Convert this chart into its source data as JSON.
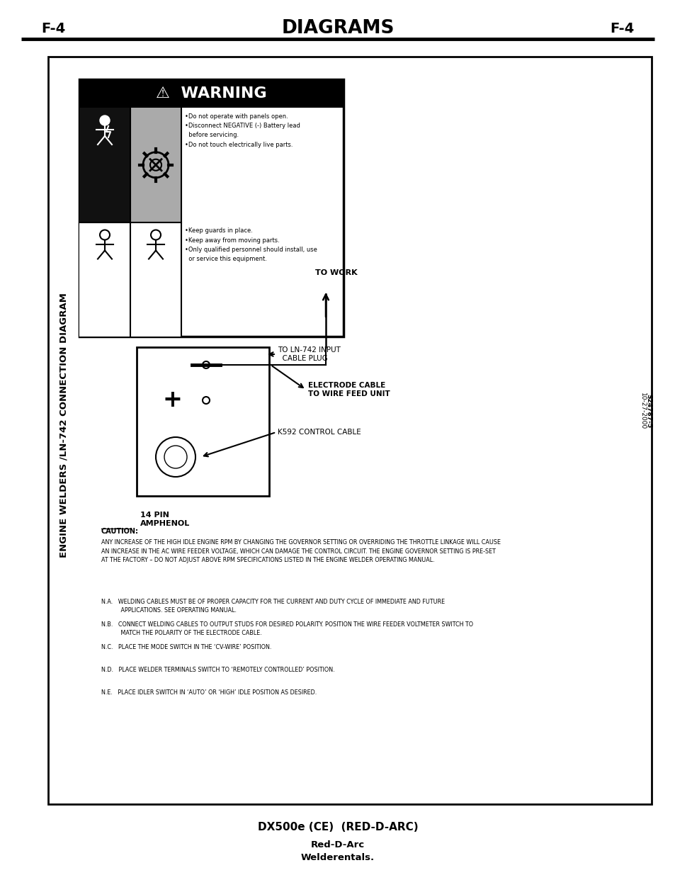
{
  "page_label_left": "F-4",
  "page_label_right": "F-4",
  "header_title": "DIAGRAMS",
  "footer_line1": "DX500e (CE)  (RED-D-ARC)",
  "footer_line2": "Red-D-Arc",
  "footer_line3": "Welderentals.",
  "sidebar_title": "ENGINE WELDERS /LN-742 CONNECTION DIAGRAM",
  "date_code": "10-27-2000",
  "part_number": "S24787-5",
  "warning_title": "⚠  WARNING",
  "left_bullets": "•Do not operate with panels open.\n•Disconnect NEGATIVE (-) Battery lead\n  before servicing.\n•Do not touch electrically live parts.",
  "right_bullets": "•Keep guards in place.\n•Keep away from moving parts.\n•Only qualified personnel should install, use\n  or service this equipment.",
  "caution_header": "CAUTION:",
  "caution_body": "ANY INCREASE OF THE HIGH IDLE ENGINE RPM BY CHANGING THE GOVERNOR SETTING OR OVERRIDING THE THROTTLE LINKAGE WILL CAUSE\nAN INCREASE IN THE AC WIRE FEEDER VOLTAGE, WHICH CAN DAMAGE THE CONTROL CIRCUIT. THE ENGINE GOVERNOR SETTING IS PRE-SET\nAT THE FACTORY – DO NOT ADJUST ABOVE RPM SPECIFICATIONS LISTED IN THE ENGINE WELDER OPERATING MANUAL.",
  "note_na": "N.A.   WELDING CABLES MUST BE OF PROPER CAPACITY FOR THE CURRENT AND DUTY CYCLE OF IMMEDIATE AND FUTURE\n           APPLICATIONS. SEE OPERATING MANUAL.",
  "note_nb": "N.B.   CONNECT WELDING CABLES TO OUTPUT STUDS FOR DESIRED POLARITY. POSITION THE WIRE FEEDER VOLTMETER SWITCH TO\n           MATCH THE POLARITY OF THE ELECTRODE CABLE.",
  "note_nc": "N.C.   PLACE THE MODE SWITCH IN THE ‘CV-WIRE’ POSITION.",
  "note_nd": "N.D.   PLACE WELDER TERMINALS SWITCH TO ‘REMOTELY CONTROLLED’ POSITION.",
  "note_ne": "N.E.   PLACE IDLER SWITCH IN ‘AUTO’ OR ‘HIGH’ IDLE POSITION AS DESIRED.",
  "label_14pin": "14 PIN\nAMPHENOL",
  "label_ln742": "TO LN-742 INPUT\n  CABLE PLUG",
  "label_k592": "K592 CONTROL CABLE",
  "label_electrode": "ELECTRODE CABLE\nTO WIRE FEED UNIT",
  "label_towork": "TO WORK",
  "bg_color": "#ffffff",
  "text_color": "#000000",
  "border_color": "#000000"
}
